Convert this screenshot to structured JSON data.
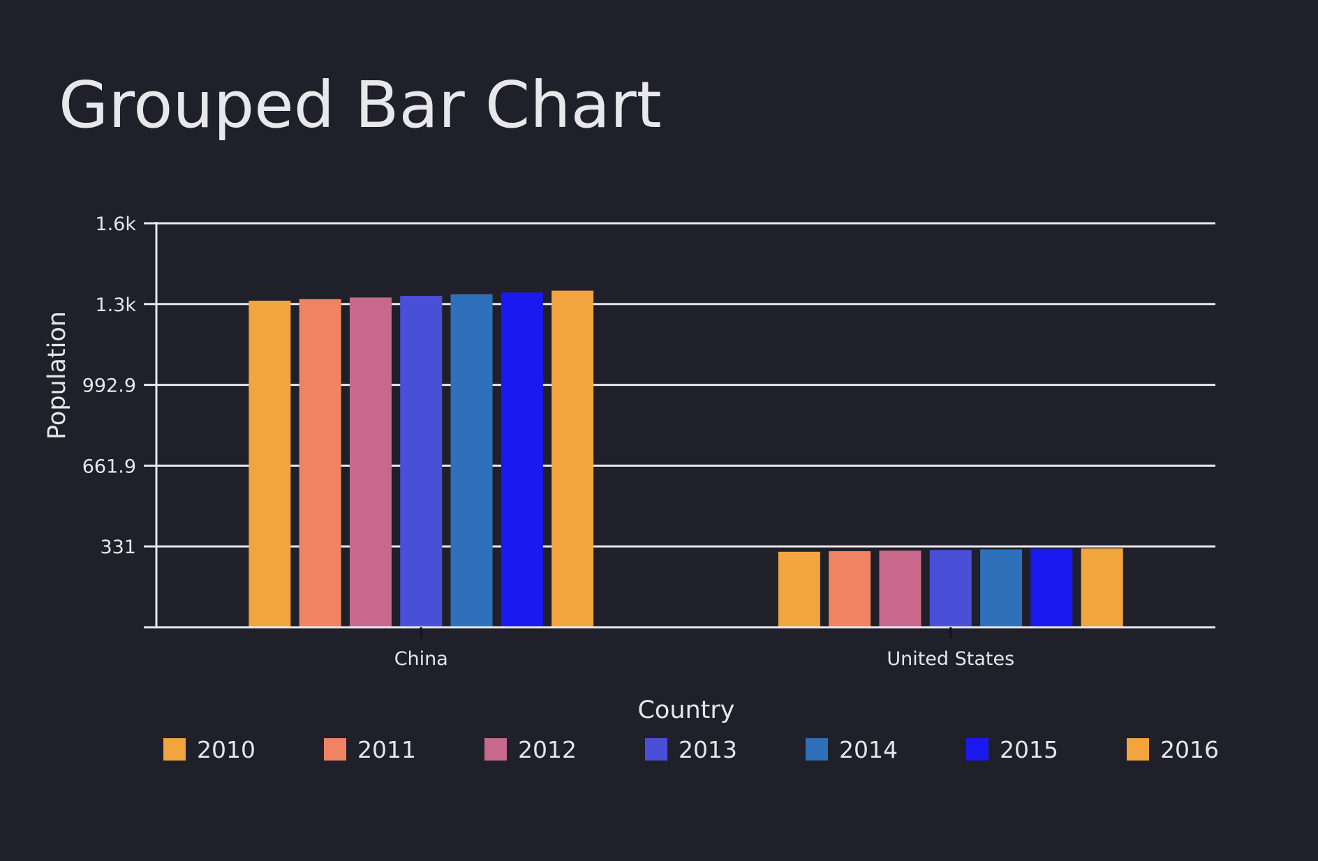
{
  "chart_data": {
    "type": "bar",
    "title": "Grouped Bar Chart",
    "xlabel": "Country",
    "ylabel": "Population",
    "categories": [
      "China",
      "United States"
    ],
    "series": [
      {
        "name": "2010",
        "values": [
          1337.7,
          309.3
        ]
      },
      {
        "name": "2011",
        "values": [
          1344.1,
          311.7
        ]
      },
      {
        "name": "2012",
        "values": [
          1350.7,
          314.1
        ]
      },
      {
        "name": "2013",
        "values": [
          1357.4,
          316.5
        ]
      },
      {
        "name": "2014",
        "values": [
          1364.3,
          318.9
        ]
      },
      {
        "name": "2015",
        "values": [
          1371.2,
          321.4
        ]
      },
      {
        "name": "2016",
        "values": [
          1378.7,
          323.1
        ]
      }
    ],
    "ylim": [
      0,
      1654.8
    ],
    "yticks": [
      0,
      331,
      661.9,
      992.9,
      1323.9,
      1654.8
    ],
    "ytick_labels": [
      "",
      "331",
      "661.9",
      "992.9",
      "1.3k",
      "1.6k"
    ],
    "grid": true,
    "legend": "bottom",
    "colors": [
      "#f2a53f",
      "#f08462",
      "#c8698c",
      "#4a4fd8",
      "#2e70b9",
      "#1a1af0",
      "#f2a53f"
    ],
    "background": "#20202a"
  }
}
